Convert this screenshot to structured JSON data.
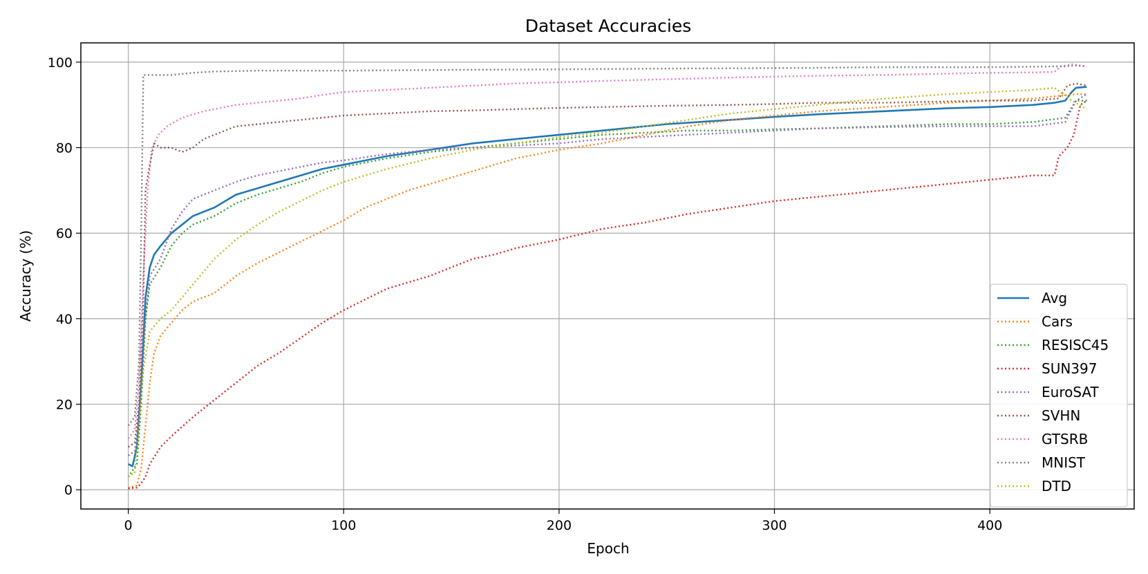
{
  "chart_data": {
    "type": "line",
    "title": "Dataset Accuracies",
    "xlabel": "Epoch",
    "ylabel": "Accuracy (%)",
    "xlim": [
      -22,
      467
    ],
    "ylim": [
      -4.5,
      104.5
    ],
    "xticks": [
      0,
      100,
      200,
      300,
      400
    ],
    "yticks": [
      0,
      20,
      40,
      60,
      80,
      100
    ],
    "grid": true,
    "legend_position": "lower-right",
    "series": [
      {
        "name": "Avg",
        "color": "#1f77b4",
        "style": "solid",
        "points": [
          [
            0,
            6
          ],
          [
            2,
            5.5
          ],
          [
            4,
            10
          ],
          [
            6,
            25
          ],
          [
            8,
            45
          ],
          [
            10,
            52
          ],
          [
            12,
            55
          ],
          [
            15,
            57
          ],
          [
            20,
            60
          ],
          [
            25,
            62
          ],
          [
            30,
            64
          ],
          [
            40,
            66
          ],
          [
            50,
            69
          ],
          [
            60,
            70.5
          ],
          [
            70,
            72
          ],
          [
            80,
            73.5
          ],
          [
            90,
            75
          ],
          [
            100,
            76
          ],
          [
            120,
            78
          ],
          [
            140,
            79.5
          ],
          [
            160,
            81
          ],
          [
            180,
            82
          ],
          [
            200,
            83
          ],
          [
            220,
            84
          ],
          [
            250,
            85.5
          ],
          [
            280,
            86.5
          ],
          [
            300,
            87.2
          ],
          [
            320,
            87.8
          ],
          [
            350,
            88.5
          ],
          [
            380,
            89.2
          ],
          [
            400,
            89.5
          ],
          [
            420,
            90
          ],
          [
            430,
            90.5
          ],
          [
            435,
            91
          ],
          [
            438,
            93
          ],
          [
            440,
            94
          ],
          [
            445,
            94.2
          ]
        ]
      },
      {
        "name": "Cars",
        "color": "#ff7f0e",
        "style": "dotted",
        "points": [
          [
            0,
            0.5
          ],
          [
            4,
            1
          ],
          [
            6,
            5
          ],
          [
            8,
            15
          ],
          [
            10,
            25
          ],
          [
            12,
            32
          ],
          [
            15,
            36
          ],
          [
            20,
            39
          ],
          [
            25,
            42
          ],
          [
            30,
            44
          ],
          [
            40,
            46
          ],
          [
            50,
            50
          ],
          [
            60,
            53
          ],
          [
            70,
            55.5
          ],
          [
            80,
            58
          ],
          [
            90,
            60.5
          ],
          [
            100,
            63
          ],
          [
            110,
            66
          ],
          [
            120,
            68
          ],
          [
            130,
            70
          ],
          [
            140,
            71.5
          ],
          [
            150,
            73
          ],
          [
            160,
            74.5
          ],
          [
            170,
            76
          ],
          [
            180,
            77.5
          ],
          [
            190,
            78.5
          ],
          [
            200,
            79.5
          ],
          [
            220,
            81
          ],
          [
            240,
            83
          ],
          [
            260,
            85
          ],
          [
            280,
            86.5
          ],
          [
            300,
            87.5
          ],
          [
            320,
            88.5
          ],
          [
            350,
            89.5
          ],
          [
            380,
            90.5
          ],
          [
            400,
            91
          ],
          [
            420,
            91.5
          ],
          [
            430,
            92
          ],
          [
            440,
            92.5
          ],
          [
            445,
            92.5
          ]
        ]
      },
      {
        "name": "RESISC45",
        "color": "#2ca02c",
        "style": "dotted",
        "points": [
          [
            0,
            3
          ],
          [
            4,
            6
          ],
          [
            6,
            20
          ],
          [
            8,
            40
          ],
          [
            10,
            48
          ],
          [
            15,
            52
          ],
          [
            20,
            57
          ],
          [
            25,
            60
          ],
          [
            30,
            62
          ],
          [
            40,
            64
          ],
          [
            50,
            67
          ],
          [
            60,
            69
          ],
          [
            70,
            70.5
          ],
          [
            80,
            72
          ],
          [
            90,
            74
          ],
          [
            100,
            75.5
          ],
          [
            120,
            77.5
          ],
          [
            140,
            79
          ],
          [
            160,
            80
          ],
          [
            180,
            81
          ],
          [
            200,
            82
          ],
          [
            220,
            83
          ],
          [
            240,
            83.5
          ],
          [
            260,
            84
          ],
          [
            280,
            84
          ],
          [
            300,
            84.3
          ],
          [
            320,
            84.5
          ],
          [
            350,
            85
          ],
          [
            380,
            85.5
          ],
          [
            400,
            85.5
          ],
          [
            420,
            86
          ],
          [
            435,
            87
          ],
          [
            440,
            91
          ],
          [
            445,
            91
          ]
        ]
      },
      {
        "name": "SUN397",
        "color": "#d62728",
        "style": "dotted",
        "points": [
          [
            0,
            0.3
          ],
          [
            4,
            0.5
          ],
          [
            6,
            1.5
          ],
          [
            8,
            3
          ],
          [
            10,
            6
          ],
          [
            15,
            10
          ],
          [
            20,
            12.5
          ],
          [
            30,
            17
          ],
          [
            40,
            21
          ],
          [
            50,
            25
          ],
          [
            60,
            29
          ],
          [
            70,
            32
          ],
          [
            80,
            35.5
          ],
          [
            90,
            39
          ],
          [
            100,
            42
          ],
          [
            110,
            44.5
          ],
          [
            120,
            47
          ],
          [
            130,
            48.5
          ],
          [
            140,
            50
          ],
          [
            150,
            52
          ],
          [
            160,
            54
          ],
          [
            170,
            55
          ],
          [
            180,
            56.5
          ],
          [
            190,
            57.5
          ],
          [
            200,
            58.5
          ],
          [
            220,
            61
          ],
          [
            240,
            62.5
          ],
          [
            260,
            64.5
          ],
          [
            280,
            66
          ],
          [
            300,
            67.5
          ],
          [
            320,
            68.5
          ],
          [
            340,
            69.5
          ],
          [
            360,
            70.5
          ],
          [
            380,
            71.5
          ],
          [
            400,
            72.5
          ],
          [
            420,
            73.5
          ],
          [
            430,
            73.5
          ],
          [
            432,
            78
          ],
          [
            436,
            80
          ],
          [
            439,
            83
          ],
          [
            442,
            90
          ],
          [
            445,
            91
          ]
        ]
      },
      {
        "name": "EuroSAT",
        "color": "#9467bd",
        "style": "dotted",
        "points": [
          [
            0,
            8
          ],
          [
            3,
            9
          ],
          [
            5,
            17
          ],
          [
            8,
            40
          ],
          [
            10,
            50
          ],
          [
            15,
            54
          ],
          [
            20,
            61
          ],
          [
            25,
            65
          ],
          [
            30,
            68
          ],
          [
            40,
            70
          ],
          [
            50,
            72
          ],
          [
            60,
            73.5
          ],
          [
            70,
            74.5
          ],
          [
            80,
            75.5
          ],
          [
            90,
            76.5
          ],
          [
            100,
            77
          ],
          [
            120,
            78.5
          ],
          [
            140,
            79.5
          ],
          [
            160,
            80
          ],
          [
            180,
            80.5
          ],
          [
            200,
            81
          ],
          [
            220,
            82
          ],
          [
            240,
            82.5
          ],
          [
            260,
            83
          ],
          [
            280,
            83.5
          ],
          [
            300,
            84
          ],
          [
            320,
            84.5
          ],
          [
            350,
            84.8
          ],
          [
            380,
            85
          ],
          [
            400,
            85
          ],
          [
            420,
            85
          ],
          [
            435,
            86
          ],
          [
            440,
            91
          ],
          [
            445,
            92.5
          ]
        ]
      },
      {
        "name": "SVHN",
        "color": "#8c564b",
        "style": "dotted",
        "points": [
          [
            0,
            10
          ],
          [
            3,
            11
          ],
          [
            5,
            20
          ],
          [
            7,
            45
          ],
          [
            8,
            70
          ],
          [
            10,
            76
          ],
          [
            12,
            81
          ],
          [
            15,
            80
          ],
          [
            20,
            80
          ],
          [
            25,
            79
          ],
          [
            30,
            80
          ],
          [
            35,
            82
          ],
          [
            40,
            83
          ],
          [
            50,
            85
          ],
          [
            60,
            85.5
          ],
          [
            70,
            86
          ],
          [
            80,
            86.5
          ],
          [
            90,
            87
          ],
          [
            100,
            87.5
          ],
          [
            120,
            88
          ],
          [
            140,
            88.5
          ],
          [
            160,
            88.7
          ],
          [
            180,
            89
          ],
          [
            200,
            89.3
          ],
          [
            220,
            89.5
          ],
          [
            250,
            89.8
          ],
          [
            280,
            90
          ],
          [
            300,
            90.2
          ],
          [
            320,
            90.5
          ],
          [
            350,
            90.5
          ],
          [
            380,
            90.8
          ],
          [
            400,
            91
          ],
          [
            420,
            91
          ],
          [
            432,
            91.5
          ],
          [
            436,
            94.5
          ],
          [
            440,
            95
          ],
          [
            445,
            94.5
          ]
        ]
      },
      {
        "name": "GTSRB",
        "color": "#e377c2",
        "style": "dotted",
        "points": [
          [
            0,
            12
          ],
          [
            3,
            14
          ],
          [
            5,
            25
          ],
          [
            7,
            50
          ],
          [
            9,
            70
          ],
          [
            11,
            80
          ],
          [
            14,
            83
          ],
          [
            18,
            85
          ],
          [
            25,
            87
          ],
          [
            35,
            88.5
          ],
          [
            50,
            90
          ],
          [
            60,
            90.5
          ],
          [
            70,
            91
          ],
          [
            80,
            91.5
          ],
          [
            90,
            92.3
          ],
          [
            100,
            93
          ],
          [
            120,
            93.5
          ],
          [
            140,
            94
          ],
          [
            160,
            94.5
          ],
          [
            180,
            95
          ],
          [
            200,
            95.3
          ],
          [
            220,
            95.6
          ],
          [
            250,
            96
          ],
          [
            280,
            96.4
          ],
          [
            300,
            96.6
          ],
          [
            320,
            96.8
          ],
          [
            350,
            97
          ],
          [
            380,
            97.3
          ],
          [
            400,
            97.5
          ],
          [
            420,
            97.6
          ],
          [
            430,
            97.7
          ],
          [
            433,
            99
          ],
          [
            438,
            99.5
          ],
          [
            445,
            99
          ]
        ]
      },
      {
        "name": "MNIST",
        "color": "#7f7f7f",
        "style": "dotted",
        "points": [
          [
            0,
            15
          ],
          [
            3,
            17
          ],
          [
            5,
            30
          ],
          [
            6,
            60
          ],
          [
            7,
            97
          ],
          [
            10,
            97
          ],
          [
            20,
            97
          ],
          [
            30,
            97.5
          ],
          [
            40,
            97.8
          ],
          [
            60,
            98
          ],
          [
            80,
            98
          ],
          [
            100,
            98
          ],
          [
            150,
            98.2
          ],
          [
            200,
            98.3
          ],
          [
            250,
            98.5
          ],
          [
            300,
            98.6
          ],
          [
            350,
            98.8
          ],
          [
            400,
            98.8
          ],
          [
            430,
            99
          ],
          [
            435,
            99
          ],
          [
            440,
            99.2
          ],
          [
            445,
            99
          ]
        ]
      },
      {
        "name": "DTD",
        "color": "#bcbd22",
        "style": "dotted",
        "points": [
          [
            0,
            3
          ],
          [
            3,
            4
          ],
          [
            5,
            15
          ],
          [
            7,
            28
          ],
          [
            10,
            37
          ],
          [
            15,
            40
          ],
          [
            20,
            42
          ],
          [
            30,
            48
          ],
          [
            40,
            54
          ],
          [
            50,
            58.5
          ],
          [
            60,
            62
          ],
          [
            70,
            65
          ],
          [
            80,
            67.5
          ],
          [
            90,
            70
          ],
          [
            100,
            72
          ],
          [
            120,
            75
          ],
          [
            140,
            77.5
          ],
          [
            160,
            79.5
          ],
          [
            180,
            81
          ],
          [
            200,
            82.5
          ],
          [
            220,
            83.5
          ],
          [
            240,
            85
          ],
          [
            260,
            86.5
          ],
          [
            280,
            88
          ],
          [
            300,
            89
          ],
          [
            320,
            90
          ],
          [
            340,
            91
          ],
          [
            360,
            91.8
          ],
          [
            380,
            92.5
          ],
          [
            400,
            93
          ],
          [
            420,
            93.5
          ],
          [
            430,
            94
          ],
          [
            438,
            91
          ],
          [
            445,
            89
          ]
        ]
      }
    ]
  }
}
